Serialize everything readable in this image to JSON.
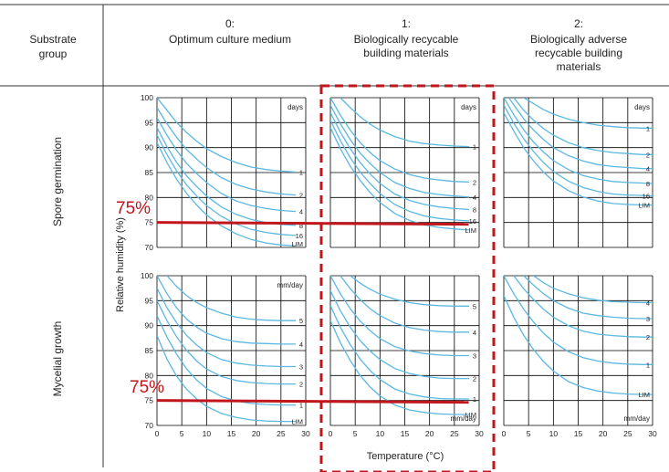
{
  "header": {
    "group_title": [
      "Substrate",
      "group"
    ],
    "columns": [
      {
        "id": "0:",
        "lines": [
          "Optimum culture medium"
        ]
      },
      {
        "id": "1:",
        "lines": [
          "Biologically recycable",
          "building materials"
        ]
      },
      {
        "id": "2:",
        "lines": [
          "Biologically adverse",
          "recycable building",
          "materials"
        ]
      }
    ]
  },
  "rows": [
    "Spore germination",
    "Mycelial growth"
  ],
  "axes": {
    "ylabel": "Relative humidity (%)",
    "xlabel": "Temperature (°C)",
    "xticks": [
      0,
      5,
      10,
      15,
      20,
      25,
      30
    ],
    "yticks": [
      100,
      95,
      90,
      85,
      80,
      75,
      70
    ]
  },
  "annotation_text": "75%",
  "colors": {
    "curve": "#5bb8e0",
    "threshold": "#c0161c",
    "highlight": "#c0161c",
    "grid": "#000000"
  },
  "chart_data": [
    {
      "type": "line",
      "row": "Spore germination",
      "column": "0:",
      "unit": "days",
      "xlim": [
        0,
        30
      ],
      "ylim": [
        70,
        100
      ],
      "series": [
        {
          "name": "1",
          "x": [
            0,
            2,
            4,
            6,
            8,
            10,
            13,
            16,
            19,
            22,
            25,
            28
          ],
          "y": [
            100,
            97.5,
            95,
            93,
            91.3,
            89.8,
            88.2,
            87,
            86.1,
            85.6,
            85.3,
            85.1
          ]
        },
        {
          "name": "2",
          "x": [
            0,
            2,
            4,
            6,
            8,
            10,
            13,
            16,
            19,
            22,
            25,
            28
          ],
          "y": [
            98,
            94.8,
            92,
            89.6,
            87.7,
            86,
            84,
            82.6,
            81.7,
            81.1,
            80.7,
            80.5
          ]
        },
        {
          "name": "4",
          "x": [
            0,
            2,
            4,
            6,
            8,
            10,
            13,
            16,
            19,
            22,
            25,
            28
          ],
          "y": [
            96,
            92.5,
            89.4,
            86.8,
            84.8,
            83,
            80.8,
            79.3,
            78.4,
            77.8,
            77.4,
            77.2
          ]
        },
        {
          "name": "8",
          "x": [
            0,
            2,
            4,
            6,
            8,
            10,
            13,
            16,
            19,
            22,
            25,
            28
          ],
          "y": [
            94,
            90.2,
            87,
            84.3,
            82.2,
            80.3,
            78.1,
            76.6,
            75.6,
            75,
            74.6,
            74.4
          ]
        },
        {
          "name": "16",
          "x": [
            0,
            2,
            4,
            6,
            8,
            10,
            13,
            16,
            19,
            22,
            25,
            28
          ],
          "y": [
            92.5,
            88.6,
            85.3,
            82.5,
            80.3,
            78.4,
            76.2,
            74.7,
            73.6,
            73,
            72.6,
            72.4
          ]
        },
        {
          "name": "LIM",
          "x": [
            0,
            2,
            4,
            6,
            8,
            10,
            13,
            16,
            19,
            22,
            25,
            28
          ],
          "y": [
            91,
            87,
            83.6,
            80.8,
            78.5,
            76.5,
            74.3,
            72.7,
            71.6,
            70.9,
            70.5,
            70.3
          ]
        }
      ],
      "threshold_y": 75
    },
    {
      "type": "line",
      "row": "Spore germination",
      "column": "1:",
      "unit": "days",
      "xlim": [
        0,
        30
      ],
      "ylim": [
        70,
        100
      ],
      "series": [
        {
          "name": "1",
          "x": [
            2,
            4,
            6,
            8,
            10,
            13,
            16,
            19,
            22,
            25,
            28
          ],
          "y": [
            100,
            98,
            96.2,
            94.7,
            93.5,
            92.2,
            91.3,
            90.8,
            90.5,
            90.3,
            90.2
          ]
        },
        {
          "name": "2",
          "x": [
            0,
            2,
            4,
            6,
            8,
            10,
            13,
            16,
            19,
            22,
            25,
            28
          ],
          "y": [
            100,
            96.5,
            93.5,
            91,
            89,
            87.4,
            85.7,
            84.6,
            83.9,
            83.5,
            83.2,
            83.1
          ]
        },
        {
          "name": "4",
          "x": [
            0,
            2,
            4,
            6,
            8,
            10,
            13,
            16,
            19,
            22,
            25,
            28
          ],
          "y": [
            98.5,
            94.8,
            91.6,
            88.9,
            86.8,
            85,
            83,
            81.8,
            81,
            80.6,
            80.3,
            80.1
          ]
        },
        {
          "name": "8",
          "x": [
            0,
            2,
            4,
            6,
            8,
            10,
            13,
            16,
            19,
            22,
            25,
            28
          ],
          "y": [
            97,
            93.1,
            89.8,
            87,
            84.7,
            82.8,
            80.7,
            79.4,
            78.6,
            78.1,
            77.8,
            77.6
          ]
        },
        {
          "name": "16",
          "x": [
            0,
            2,
            4,
            6,
            8,
            10,
            13,
            16,
            19,
            22,
            25,
            28
          ],
          "y": [
            95.5,
            91.4,
            88,
            85.1,
            82.8,
            80.8,
            78.6,
            77.2,
            76.3,
            75.8,
            75.5,
            75.3
          ]
        },
        {
          "name": "LIM",
          "x": [
            0,
            2,
            4,
            6,
            8,
            10,
            13,
            16,
            19,
            22,
            25,
            28
          ],
          "y": [
            94,
            89.8,
            86.3,
            83.4,
            81,
            79,
            76.8,
            75.4,
            74.5,
            74,
            73.7,
            73.5
          ]
        }
      ],
      "threshold_y": 75
    },
    {
      "type": "line",
      "row": "Spore germination",
      "column": "2:",
      "unit": "days",
      "xlim": [
        0,
        30
      ],
      "ylim": [
        70,
        100
      ],
      "series": [
        {
          "name": "1",
          "x": [
            4,
            6,
            8,
            10,
            13,
            16,
            19,
            22,
            25,
            28,
            30
          ],
          "y": [
            100,
            98.8,
            97.6,
            96.7,
            95.7,
            95,
            94.5,
            94.2,
            94,
            93.9,
            93.9
          ]
        },
        {
          "name": "2",
          "x": [
            2,
            4,
            6,
            8,
            10,
            13,
            16,
            19,
            22,
            25,
            28,
            30
          ],
          "y": [
            100,
            97.5,
            95.5,
            93.8,
            92.5,
            91,
            90,
            89.4,
            89,
            88.8,
            88.6,
            88.6
          ]
        },
        {
          "name": "4",
          "x": [
            1,
            2,
            4,
            6,
            8,
            10,
            13,
            16,
            19,
            22,
            25,
            28,
            30
          ],
          "y": [
            100,
            98.6,
            95.8,
            93.5,
            91.6,
            90,
            88.4,
            87.3,
            86.6,
            86.2,
            86,
            85.8,
            85.8
          ]
        },
        {
          "name": "8",
          "x": [
            0,
            2,
            4,
            6,
            8,
            10,
            13,
            16,
            19,
            22,
            25,
            28,
            30
          ],
          "y": [
            100,
            96.6,
            93.6,
            91.1,
            89.1,
            87.4,
            85.6,
            84.4,
            83.7,
            83.2,
            83,
            82.9,
            82.8
          ]
        },
        {
          "name": "16",
          "x": [
            0,
            2,
            4,
            6,
            8,
            10,
            13,
            16,
            19,
            22,
            25,
            28,
            30
          ],
          "y": [
            98.5,
            94.9,
            91.8,
            89.2,
            87,
            85.2,
            83.3,
            82,
            81.2,
            80.7,
            80.5,
            80.4,
            80.3
          ]
        },
        {
          "name": "LIM",
          "x": [
            0,
            2,
            4,
            6,
            8,
            10,
            13,
            16,
            19,
            22,
            25,
            28,
            30
          ],
          "y": [
            97,
            93.3,
            90,
            87.3,
            85.1,
            83.3,
            81.4,
            80.1,
            79.3,
            78.8,
            78.6,
            78.5,
            78.5
          ]
        }
      ]
    },
    {
      "type": "line",
      "row": "Mycelial growth",
      "column": "0:",
      "unit": "mm/day",
      "xlim": [
        0,
        30
      ],
      "ylim": [
        70,
        100
      ],
      "series": [
        {
          "name": "5",
          "x": [
            2,
            4,
            6,
            8,
            10,
            13,
            16,
            19,
            22,
            25,
            28
          ],
          "y": [
            100,
            97.8,
            96,
            94.6,
            93.6,
            92.5,
            91.7,
            91.3,
            91.1,
            91,
            91
          ]
        },
        {
          "name": "4",
          "x": [
            0,
            2,
            4,
            6,
            8,
            10,
            13,
            16,
            19,
            22,
            25,
            28
          ],
          "y": [
            100,
            96.4,
            93.5,
            91.3,
            89.7,
            88.5,
            87.4,
            86.8,
            86.5,
            86.4,
            86.3,
            86.3
          ]
        },
        {
          "name": "3",
          "x": [
            0,
            2,
            4,
            6,
            8,
            10,
            13,
            16,
            19,
            22,
            25,
            28
          ],
          "y": [
            97.5,
            93.6,
            90.5,
            88,
            86.1,
            84.6,
            83.2,
            82.5,
            82.1,
            81.9,
            81.8,
            81.8
          ]
        },
        {
          "name": "2",
          "x": [
            0,
            2,
            4,
            6,
            8,
            10,
            13,
            16,
            19,
            22,
            25,
            28
          ],
          "y": [
            95,
            91,
            87.7,
            85,
            82.9,
            81.3,
            79.8,
            79,
            78.6,
            78.4,
            78.3,
            78.3
          ]
        },
        {
          "name": "1",
          "x": [
            0,
            2,
            4,
            6,
            8,
            10,
            13,
            16,
            19,
            22,
            25,
            28
          ],
          "y": [
            92,
            87.7,
            84.2,
            81.3,
            79.1,
            77.4,
            75.8,
            74.9,
            74.4,
            74.2,
            74.1,
            74.1
          ]
        },
        {
          "name": "LIM",
          "x": [
            0,
            2,
            4,
            6,
            8,
            10,
            13,
            16,
            19,
            22,
            25,
            28
          ],
          "y": [
            88,
            83.3,
            79.8,
            77.2,
            75.3,
            73.8,
            72.4,
            71.6,
            71.1,
            70.9,
            70.8,
            70.8
          ]
        }
      ],
      "threshold_y": 75
    },
    {
      "type": "line",
      "row": "Mycelial growth",
      "column": "1:",
      "unit": "mm/day",
      "xlim": [
        0,
        30
      ],
      "ylim": [
        70,
        100
      ],
      "series": [
        {
          "name": "5",
          "x": [
            4,
            6,
            8,
            10,
            13,
            16,
            19,
            22,
            25,
            28
          ],
          "y": [
            100,
            98.5,
            97.3,
            96.3,
            95.3,
            94.6,
            94.2,
            94,
            93.9,
            93.9
          ]
        },
        {
          "name": "4",
          "x": [
            2,
            4,
            6,
            8,
            10,
            13,
            16,
            19,
            22,
            25,
            28
          ],
          "y": [
            100,
            97.4,
            95.2,
            93.4,
            92,
            90.5,
            89.6,
            89.1,
            88.8,
            88.7,
            88.7
          ]
        },
        {
          "name": "3",
          "x": [
            0,
            2,
            4,
            6,
            8,
            10,
            13,
            16,
            19,
            22,
            25,
            28
          ],
          "y": [
            100,
            96.4,
            93.4,
            90.9,
            89,
            87.4,
            85.8,
            84.9,
            84.4,
            84.1,
            84,
            84
          ]
        },
        {
          "name": "2",
          "x": [
            0,
            2,
            4,
            6,
            8,
            10,
            13,
            16,
            19,
            22,
            25,
            28
          ],
          "y": [
            97,
            93,
            89.7,
            87,
            84.9,
            83.2,
            81.4,
            80.4,
            79.8,
            79.5,
            79.4,
            79.4
          ]
        },
        {
          "name": "1",
          "x": [
            0,
            2,
            4,
            6,
            8,
            10,
            13,
            16,
            19,
            22,
            25,
            28
          ],
          "y": [
            94,
            89.7,
            86.2,
            83.3,
            81,
            79.2,
            77.3,
            76.3,
            75.7,
            75.4,
            75.3,
            75.3
          ]
        },
        {
          "name": "LIM",
          "x": [
            0,
            2,
            4,
            6,
            8,
            10,
            13,
            16,
            19,
            22,
            25,
            28
          ],
          "y": [
            91,
            86.6,
            83,
            80,
            77.7,
            75.9,
            74.1,
            73.1,
            72.6,
            72.3,
            72.2,
            72.2
          ]
        }
      ],
      "threshold_y": 75
    },
    {
      "type": "line",
      "row": "Mycelial growth",
      "column": "2:",
      "unit": "mm/day",
      "xlim": [
        0,
        30
      ],
      "ylim": [
        70,
        100
      ],
      "series": [
        {
          "name": "4",
          "x": [
            6,
            8,
            10,
            13,
            16,
            19,
            22,
            25,
            28,
            30
          ],
          "y": [
            100,
            98.6,
            97.5,
            96.4,
            95.6,
            95.1,
            94.8,
            94.7,
            94.6,
            94.6
          ]
        },
        {
          "name": "3",
          "x": [
            4,
            6,
            8,
            10,
            13,
            16,
            19,
            22,
            25,
            28,
            30
          ],
          "y": [
            100,
            98.1,
            96.4,
            95,
            93.5,
            92.5,
            92,
            91.7,
            91.5,
            91.4,
            91.4
          ]
        },
        {
          "name": "2",
          "x": [
            2,
            4,
            6,
            8,
            10,
            13,
            16,
            19,
            22,
            25,
            28,
            30
          ],
          "y": [
            100,
            97.4,
            95.2,
            93.3,
            91.7,
            90,
            88.9,
            88.3,
            88,
            87.8,
            87.7,
            87.7
          ]
        },
        {
          "name": "1",
          "x": [
            0,
            2,
            4,
            6,
            8,
            10,
            13,
            16,
            19,
            22,
            25,
            28,
            30
          ],
          "y": [
            100,
            96.4,
            93.3,
            90.7,
            88.5,
            86.7,
            84.8,
            83.6,
            82.9,
            82.5,
            82.3,
            82.2,
            82.2
          ]
        },
        {
          "name": "LIM",
          "x": [
            0,
            2,
            4,
            6,
            8,
            10,
            13,
            16,
            19,
            22,
            25,
            28,
            30
          ],
          "y": [
            96,
            91.7,
            88.1,
            85.2,
            82.8,
            80.9,
            78.8,
            77.6,
            76.9,
            76.5,
            76.3,
            76.2,
            76.2
          ]
        }
      ]
    }
  ]
}
